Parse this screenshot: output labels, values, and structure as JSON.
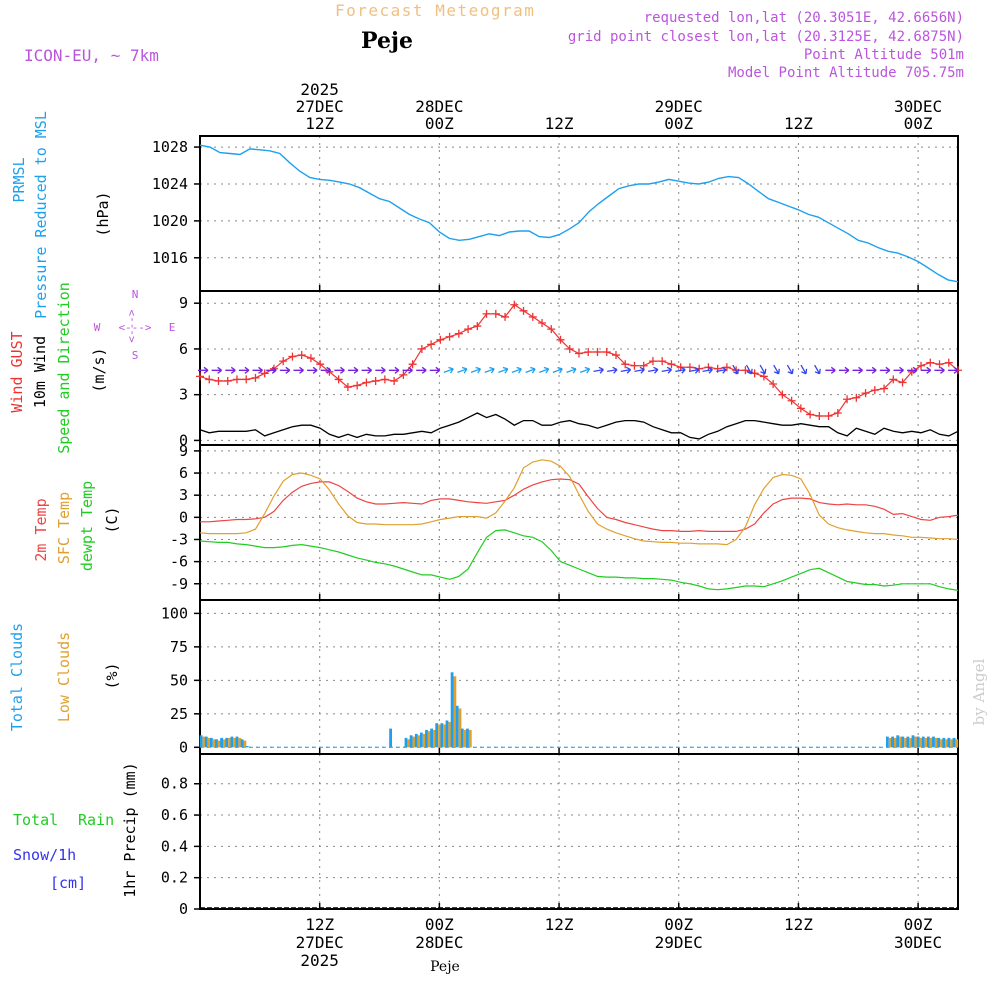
{
  "header": {
    "subtitle": "Forecast Meteogram",
    "location": "Peje",
    "model": "ICON-EU, ~ 7km",
    "requested": "requested lon,lat (20.3051E, 42.6656N)",
    "grid": "grid point closest lon,lat (20.3125E, 42.6875N)",
    "point_alt": "Point Altitude 501m",
    "model_alt": "Model Point Altitude 705.75m",
    "footer": "Peje",
    "credit": "by Angel"
  },
  "colors": {
    "pressure": "#1ea0ee",
    "gust": "#ee3333",
    "wind": "#000000",
    "arrow": "#7722dd",
    "temp2m": "#ee4444",
    "sfc": "#e0a030",
    "dew": "#22cc22",
    "total_cloud": "#1ea0ee",
    "low_cloud": "#e0a030",
    "rain": "#22cc22",
    "snow": "#3333ee",
    "purple": "#bb55dd",
    "orange": "#f0c080"
  },
  "time_axis": {
    "top": [
      {
        "id": "t1",
        "lines": [
          "2025",
          "27DEC",
          "12Z"
        ]
      },
      {
        "id": "t2",
        "lines": [
          "28DEC",
          "00Z"
        ]
      },
      {
        "id": "t3",
        "lines": [
          "12Z"
        ]
      },
      {
        "id": "t4",
        "lines": [
          "29DEC",
          "00Z"
        ]
      },
      {
        "id": "t5",
        "lines": [
          "12Z"
        ]
      },
      {
        "id": "t6",
        "lines": [
          "30DEC",
          "00Z"
        ]
      }
    ],
    "bottom": [
      {
        "id": "b1",
        "lines": [
          "12Z",
          "27DEC",
          "2025"
        ]
      },
      {
        "id": "b2",
        "lines": [
          "00Z",
          "28DEC"
        ]
      },
      {
        "id": "b3",
        "lines": [
          "12Z"
        ]
      },
      {
        "id": "b4",
        "lines": [
          "00Z",
          "29DEC"
        ]
      },
      {
        "id": "b5",
        "lines": [
          "12Z"
        ]
      },
      {
        "id": "b6",
        "lines": [
          "00Z",
          "30DEC"
        ]
      }
    ]
  },
  "panels": {
    "pressure": {
      "labels": [
        "PRMSL",
        "Pressure Reduced to MSL"
      ],
      "unit": "(hPa)"
    },
    "wind": {
      "labels": [
        "Wind GUST",
        "10m Wind",
        "Speed and Direction"
      ],
      "unit": "(m/s)",
      "compass": {
        "n": "N",
        "s": "S",
        "w": "W",
        "e": "E",
        "ns_arrow": "<--->",
        "we_arrow": "<--->"
      }
    },
    "temp": {
      "labels": [
        "2m Temp",
        "SFC Temp",
        "dewpt Temp"
      ],
      "unit": "(C)"
    },
    "cloud": {
      "labels": [
        "Total Clouds",
        "Low Clouds"
      ],
      "unit": "(%)"
    },
    "precip": {
      "labels": [
        "Total",
        "Rain",
        "Snow/1h",
        "[cm]"
      ],
      "unit": "1hr Precip (mm)"
    }
  },
  "chart_data": [
    {
      "id": "pressure",
      "type": "line",
      "ylabel": "PRMSL Pressure Reduced to MSL (hPa)",
      "ylim": [
        1012.4,
        1029.2
      ],
      "yticks": [
        1016,
        1020,
        1024,
        1028
      ],
      "x_hours": [
        0,
        1,
        2,
        3,
        4,
        5,
        6,
        7,
        8,
        9,
        10,
        11,
        12,
        13,
        14,
        15,
        16,
        17,
        18,
        19,
        20,
        21,
        22,
        23,
        24,
        25,
        26,
        27,
        28,
        29,
        30,
        31,
        32,
        33,
        34,
        35,
        36,
        37,
        38,
        39,
        40,
        41,
        42,
        43,
        44,
        45,
        46,
        47,
        48,
        49,
        50,
        51,
        52,
        53,
        54,
        55,
        56,
        57,
        58,
        59,
        60,
        61,
        62,
        63,
        64,
        65,
        66,
        67,
        68,
        69,
        70,
        71,
        72,
        73,
        74,
        75,
        76
      ],
      "series": [
        {
          "name": "PRMSL",
          "values": [
            1028.2,
            1028.0,
            1027.4,
            1027.3,
            1027.2,
            1027.8,
            1027.7,
            1027.6,
            1027.3,
            1026.3,
            1025.4,
            1024.7,
            1024.5,
            1024.4,
            1024.2,
            1024.0,
            1023.6,
            1023.0,
            1022.4,
            1022.1,
            1021.4,
            1020.7,
            1020.2,
            1019.8,
            1018.8,
            1018.1,
            1017.9,
            1018.0,
            1018.3,
            1018.6,
            1018.4,
            1018.8,
            1018.9,
            1018.9,
            1018.3,
            1018.2,
            1018.5,
            1019.1,
            1019.8,
            1021.0,
            1021.9,
            1022.7,
            1023.5,
            1023.8,
            1024.0,
            1024.0,
            1024.2,
            1024.5,
            1024.3,
            1024.1,
            1024.0,
            1024.2,
            1024.6,
            1024.8,
            1024.7,
            1024.0,
            1023.2,
            1022.4,
            1022.0,
            1021.6,
            1021.2,
            1020.7,
            1020.4,
            1019.8,
            1019.2,
            1018.6,
            1017.9,
            1017.6,
            1017.1,
            1016.7,
            1016.5,
            1016.1,
            1015.6,
            1014.9,
            1014.2,
            1013.6,
            1013.4
          ]
        }
      ]
    },
    {
      "id": "wind",
      "type": "line",
      "ylabel": "Wind (m/s)",
      "ylim": [
        -0.3,
        9.8
      ],
      "yticks": [
        0,
        3,
        6,
        9
      ],
      "series": [
        {
          "name": "Wind GUST",
          "values": [
            4.2,
            4.0,
            3.9,
            3.9,
            4.0,
            4.0,
            4.1,
            4.4,
            4.7,
            5.2,
            5.5,
            5.6,
            5.4,
            5.0,
            4.5,
            4.0,
            3.5,
            3.6,
            3.8,
            3.9,
            4.0,
            3.9,
            4.3,
            5.0,
            6.0,
            6.3,
            6.6,
            6.8,
            7.0,
            7.3,
            7.5,
            8.3,
            8.3,
            8.1,
            8.9,
            8.5,
            8.1,
            7.7,
            7.3,
            6.6,
            6.0,
            5.7,
            5.8,
            5.8,
            5.8,
            5.6,
            5.0,
            4.9,
            4.9,
            5.2,
            5.2,
            5.0,
            4.8,
            4.8,
            4.7,
            4.8,
            4.7,
            4.8,
            4.6,
            4.6,
            4.4,
            4.2,
            3.7,
            3.0,
            2.6,
            2.1,
            1.7,
            1.6,
            1.6,
            1.8,
            2.7,
            2.8,
            3.1,
            3.3,
            3.4,
            4.0,
            3.8,
            4.5,
            4.9,
            5.1,
            5.0,
            5.1,
            4.6
          ]
        },
        {
          "name": "10m Wind",
          "values": [
            0.7,
            0.5,
            0.6,
            0.6,
            0.6,
            0.6,
            0.7,
            0.3,
            0.5,
            0.7,
            0.9,
            1.0,
            1.0,
            0.8,
            0.4,
            0.2,
            0.4,
            0.2,
            0.4,
            0.3,
            0.3,
            0.4,
            0.4,
            0.5,
            0.6,
            0.5,
            0.8,
            1.0,
            1.2,
            1.5,
            1.8,
            1.5,
            1.7,
            1.4,
            1.0,
            1.3,
            1.3,
            1.0,
            1.0,
            1.2,
            1.3,
            1.1,
            1.0,
            0.8,
            1.0,
            1.2,
            1.3,
            1.3,
            1.2,
            0.9,
            0.7,
            0.5,
            0.5,
            0.2,
            0.1,
            0.4,
            0.6,
            0.9,
            1.1,
            1.3,
            1.3,
            1.2,
            1.1,
            1.0,
            1.0,
            1.1,
            1.0,
            0.9,
            0.9,
            0.5,
            0.3,
            0.8,
            0.6,
            0.4,
            0.8,
            0.6,
            0.5,
            0.6,
            0.5,
            0.7,
            0.4,
            0.3,
            0.6
          ]
        }
      ],
      "arrows_level": 4.6
    },
    {
      "id": "temp",
      "type": "line",
      "ylabel": "Temperature (C)",
      "ylim": [
        -11.2,
        9.8
      ],
      "yticks": [
        -9,
        -6,
        -3,
        0,
        3,
        6,
        9
      ],
      "series": [
        {
          "name": "2m Temp",
          "values": [
            -0.6,
            -0.6,
            -0.5,
            -0.4,
            -0.3,
            -0.3,
            -0.2,
            0.0,
            0.8,
            2.3,
            3.4,
            4.2,
            4.6,
            4.8,
            4.8,
            4.3,
            3.5,
            2.6,
            2.1,
            1.8,
            1.8,
            1.9,
            2.0,
            1.9,
            1.8,
            2.3,
            2.5,
            2.5,
            2.3,
            2.1,
            2.0,
            1.9,
            2.1,
            2.3,
            3.0,
            3.8,
            4.4,
            4.8,
            5.1,
            5.2,
            5.1,
            4.5,
            2.8,
            1.2,
            0.0,
            -0.3,
            -0.7,
            -1.0,
            -1.3,
            -1.6,
            -1.8,
            -1.8,
            -1.9,
            -1.9,
            -1.8,
            -1.9,
            -1.9,
            -1.9,
            -1.9,
            -1.6,
            -0.9,
            0.6,
            1.8,
            2.4,
            2.6,
            2.6,
            2.5,
            2.0,
            1.8,
            1.7,
            1.8,
            1.7,
            1.7,
            1.5,
            1.1,
            0.4,
            0.5,
            0.1,
            -0.3,
            -0.4,
            0.0,
            0.1,
            0.3
          ]
        },
        {
          "name": "SFC Temp",
          "values": [
            -2.1,
            -2.2,
            -2.2,
            -2.2,
            -2.2,
            -2.1,
            -1.6,
            0.5,
            2.9,
            4.9,
            5.8,
            6.0,
            5.7,
            5.2,
            3.7,
            1.8,
            0.2,
            -0.7,
            -0.9,
            -0.9,
            -1.0,
            -1.0,
            -1.0,
            -1.0,
            -0.9,
            -0.6,
            -0.3,
            -0.1,
            0.1,
            0.1,
            0.1,
            -0.1,
            0.6,
            2.2,
            4.0,
            6.7,
            7.5,
            7.8,
            7.6,
            6.9,
            5.5,
            3.1,
            0.8,
            -0.9,
            -1.6,
            -2.1,
            -2.5,
            -2.9,
            -3.2,
            -3.3,
            -3.4,
            -3.4,
            -3.5,
            -3.5,
            -3.6,
            -3.6,
            -3.6,
            -3.7,
            -3.0,
            -1.3,
            1.7,
            3.9,
            5.4,
            5.8,
            5.7,
            5.2,
            3.1,
            0.3,
            -0.9,
            -1.4,
            -1.7,
            -1.9,
            -2.1,
            -2.2,
            -2.2,
            -2.4,
            -2.5,
            -2.7,
            -2.7,
            -2.8,
            -2.9,
            -2.9,
            -3.0
          ]
        },
        {
          "name": "dewpt Temp",
          "values": [
            -3.2,
            -3.3,
            -3.4,
            -3.4,
            -3.6,
            -3.7,
            -3.9,
            -4.1,
            -4.1,
            -4.0,
            -3.8,
            -3.7,
            -3.9,
            -4.1,
            -4.4,
            -4.7,
            -5.1,
            -5.5,
            -5.8,
            -6.1,
            -6.3,
            -6.6,
            -7.0,
            -7.4,
            -7.8,
            -7.8,
            -8.1,
            -8.4,
            -8.0,
            -7.0,
            -4.8,
            -2.7,
            -1.8,
            -1.7,
            -2.1,
            -2.5,
            -2.7,
            -3.3,
            -4.5,
            -6.0,
            -6.5,
            -7.0,
            -7.5,
            -8.0,
            -8.1,
            -8.1,
            -8.2,
            -8.2,
            -8.3,
            -8.3,
            -8.4,
            -8.5,
            -8.8,
            -9.0,
            -9.3,
            -9.7,
            -9.8,
            -9.7,
            -9.5,
            -9.3,
            -9.3,
            -9.4,
            -9.0,
            -8.6,
            -8.1,
            -7.6,
            -7.1,
            -6.9,
            -7.5,
            -8.1,
            -8.7,
            -8.9,
            -9.1,
            -9.1,
            -9.3,
            -9.2,
            -9.0,
            -9.0,
            -9.0,
            -9.0,
            -9.4,
            -9.7,
            -9.9
          ]
        }
      ]
    },
    {
      "id": "cloud",
      "type": "bar",
      "ylabel": "Clouds (%)",
      "ylim": [
        -5,
        110
      ],
      "yticks": [
        0,
        25,
        50,
        75,
        100
      ],
      "series": [
        {
          "name": "Total Clouds",
          "values": [
            9,
            8,
            7,
            6,
            7,
            7,
            8,
            8,
            6,
            1,
            0,
            0,
            0,
            0,
            0,
            0,
            0,
            0,
            0,
            0,
            0,
            0,
            0,
            0,
            0,
            0,
            0,
            0,
            0,
            0,
            0,
            0,
            0,
            0,
            0,
            0,
            0,
            14,
            0,
            0,
            7,
            9,
            10,
            11,
            13,
            14,
            18,
            18,
            20,
            56,
            31,
            14,
            14,
            0,
            0,
            0,
            0,
            0,
            0,
            0,
            0,
            0,
            0,
            0,
            0,
            0,
            0,
            0,
            0,
            0,
            0,
            0,
            0,
            0,
            0,
            0,
            0,
            0,
            0,
            0,
            0,
            0,
            0,
            0,
            0,
            0,
            0,
            0,
            0,
            0,
            0,
            0,
            0,
            0,
            0,
            0,
            0,
            0,
            0,
            0,
            0,
            0,
            0,
            0,
            0,
            0,
            0,
            0,
            0,
            0,
            0,
            0,
            0,
            0,
            0,
            0,
            0,
            0,
            0,
            0,
            0,
            0,
            0,
            0,
            0,
            0,
            0,
            0,
            0,
            0,
            0,
            0,
            0,
            0,
            8,
            8,
            9,
            8,
            8,
            9,
            8,
            8,
            8,
            8,
            7,
            7,
            7,
            7
          ]
        },
        {
          "name": "Low Clouds",
          "values": [
            8,
            7,
            6,
            5,
            6,
            7,
            7,
            7,
            5,
            0,
            0,
            0,
            0,
            0,
            0,
            0,
            0,
            0,
            0,
            0,
            0,
            0,
            0,
            0,
            0,
            0,
            0,
            0,
            0,
            0,
            0,
            0,
            0,
            0,
            0,
            0,
            0,
            0,
            0,
            0,
            6,
            8,
            9,
            10,
            12,
            13,
            17,
            17,
            19,
            53,
            29,
            13,
            13,
            0,
            0,
            0,
            0,
            0,
            0,
            0,
            0,
            0,
            0,
            0,
            0,
            0,
            0,
            0,
            0,
            0,
            0,
            0,
            0,
            0,
            0,
            0,
            0,
            0,
            0,
            0,
            0,
            0,
            0,
            0,
            0,
            0,
            0,
            0,
            0,
            0,
            0,
            0,
            0,
            0,
            0,
            0,
            0,
            0,
            0,
            0,
            0,
            0,
            0,
            0,
            0,
            0,
            0,
            0,
            0,
            0,
            0,
            0,
            0,
            0,
            0,
            0,
            0,
            0,
            0,
            0,
            0,
            0,
            0,
            0,
            0,
            0,
            0,
            0,
            0,
            0,
            0,
            0,
            0,
            0,
            7,
            7,
            8,
            7,
            7,
            8,
            7,
            7,
            7,
            7,
            6,
            6,
            6,
            6
          ]
        }
      ]
    },
    {
      "id": "precip",
      "type": "bar",
      "ylabel": "1hr Precip (mm)",
      "ylim": [
        0,
        0.99
      ],
      "yticks": [
        0,
        0.2,
        0.4,
        0.6,
        0.8
      ],
      "series": [
        {
          "name": "Total",
          "values": []
        },
        {
          "name": "Snow",
          "values": []
        }
      ]
    }
  ]
}
